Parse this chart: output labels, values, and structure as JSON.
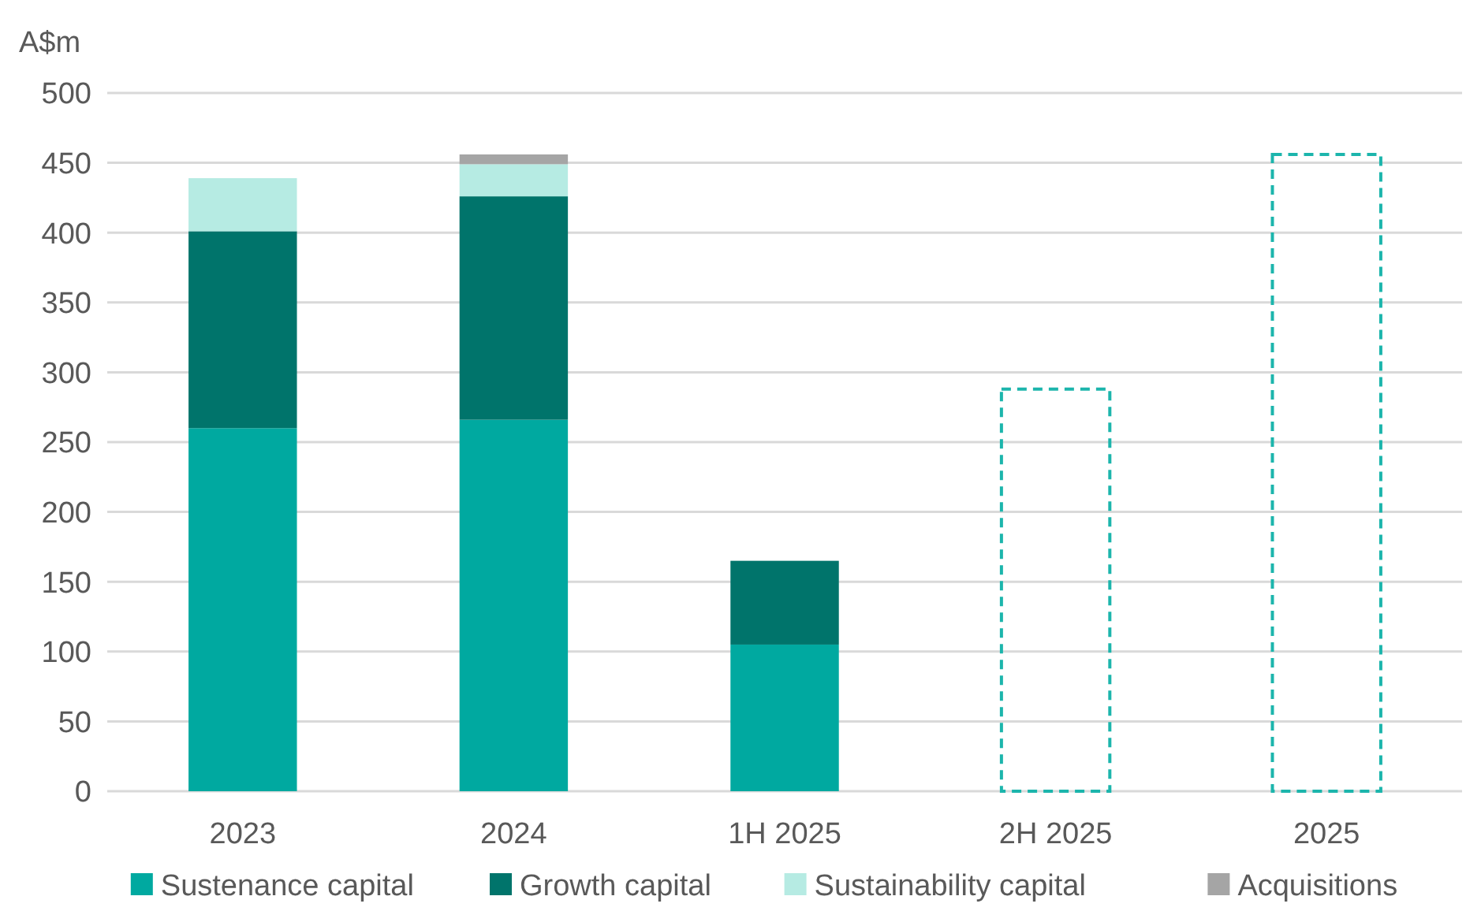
{
  "chart_data": {
    "type": "bar",
    "stacked": true,
    "ylabel": "A$m",
    "categories": [
      "2023",
      "2024",
      "1H 2025",
      "2H 2025",
      "2025"
    ],
    "series": [
      {
        "name": "Sustenance capital",
        "color": "#00a9a0",
        "values": [
          260,
          266,
          105,
          null,
          null
        ]
      },
      {
        "name": "Growth capital",
        "color": "#00746b",
        "values": [
          141,
          160,
          60,
          null,
          null
        ]
      },
      {
        "name": "Sustainability capital",
        "color": "#b6ebe3",
        "values": [
          38,
          23,
          null,
          null,
          null
        ]
      },
      {
        "name": "Acquisitions",
        "color": "#a5a5a5",
        "values": [
          null,
          7,
          null,
          null,
          null
        ]
      },
      {
        "color": "#1cb5ac",
        "line_style": "dashed",
        "values": [
          null,
          null,
          null,
          288,
          456
        ]
      }
    ],
    "ylim": [
      0,
      500
    ],
    "yticks": [
      0,
      50,
      100,
      150,
      200,
      250,
      300,
      350,
      400,
      450,
      500
    ],
    "grid": "y",
    "legend": "bottom"
  }
}
